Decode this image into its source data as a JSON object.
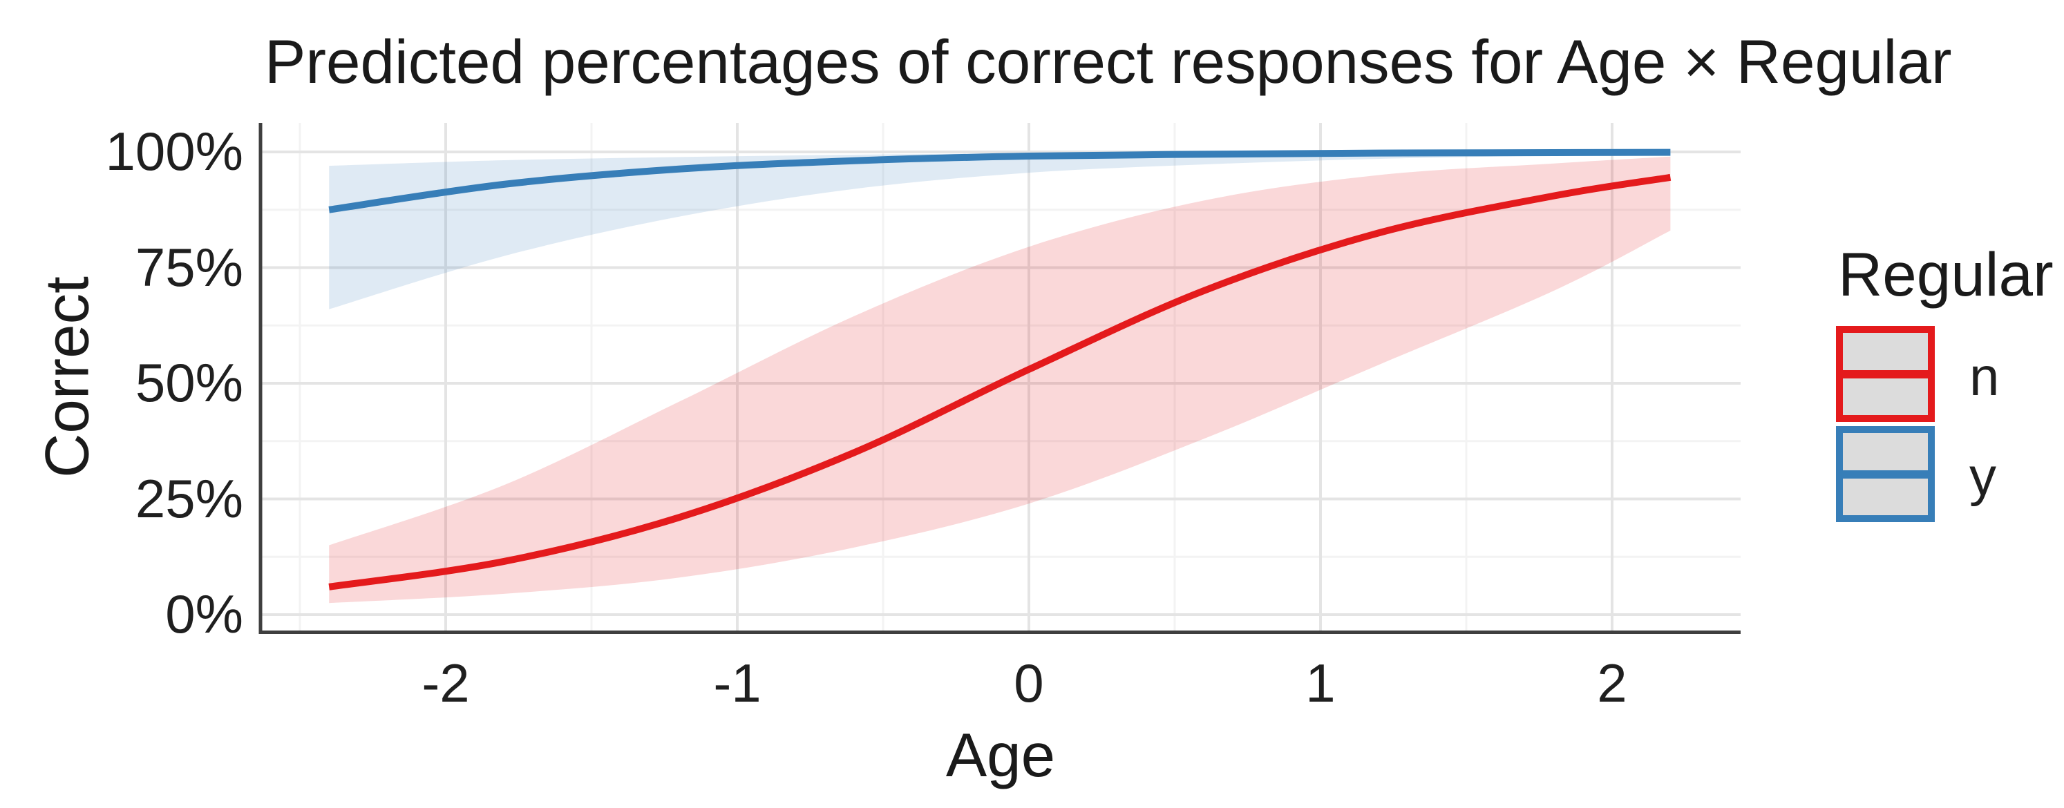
{
  "chart": {
    "title": "Predicted percentages of correct responses for Age × Regular",
    "x_axis": {
      "title": "Age",
      "ticks": [
        {
          "value": -2,
          "label": "-2"
        },
        {
          "value": -1,
          "label": "-1"
        },
        {
          "value": 0,
          "label": "0"
        },
        {
          "value": 1,
          "label": "1"
        },
        {
          "value": 2,
          "label": "2"
        }
      ]
    },
    "y_axis": {
      "title": "Correct",
      "ticks": [
        {
          "value": 0,
          "label": "0%"
        },
        {
          "value": 25,
          "label": "25%"
        },
        {
          "value": 50,
          "label": "50%"
        },
        {
          "value": 75,
          "label": "75%"
        },
        {
          "value": 100,
          "label": "100%"
        }
      ]
    },
    "legend": {
      "title": "Regular",
      "entries": [
        {
          "label": "n",
          "color": "#E41A1C"
        },
        {
          "label": "y",
          "color": "#377EB8"
        }
      ],
      "key_fill": "#DCDCDC"
    },
    "colors": {
      "series_n": "#E41A1C",
      "series_y": "#377EB8",
      "grid_major": "#E4E4E4",
      "grid_minor": "#F3F3F3",
      "axis_line": "#3F3F3F",
      "ribbon_opacity_n": 0.17,
      "ribbon_opacity_y": 0.16
    }
  },
  "chart_data": {
    "type": "line",
    "title": "Predicted percentages of correct responses for Age × Regular",
    "xlabel": "Age",
    "ylabel": "Correct",
    "xlim": [
      -2.63,
      2.44
    ],
    "ylim_percent": [
      0,
      100
    ],
    "grid": "major and minor, light gray on white",
    "legend_position": "right",
    "legend_title": "Regular",
    "x": [
      -2.4,
      -1.8,
      -1.2,
      -0.6,
      0,
      0.6,
      1.2,
      1.8,
      2.2
    ],
    "series": [
      {
        "name": "n",
        "color": "#E41A1C",
        "values_percent": [
          6,
          11.5,
          21,
          35,
          53,
          70,
          82.5,
          90.5,
          94.5
        ],
        "ci_lower_percent": [
          2.5,
          4.5,
          8,
          14.5,
          24,
          38,
          54,
          70,
          83
        ],
        "ci_upper_percent": [
          15,
          28,
          46,
          64.5,
          79.5,
          89.5,
          95,
          97.5,
          99
        ]
      },
      {
        "name": "y",
        "color": "#377EB8",
        "values_percent": [
          87.5,
          93,
          96.3,
          98.1,
          99.1,
          99.5,
          99.75,
          99.85,
          99.9
        ],
        "ci_lower_percent": [
          66,
          77.5,
          86,
          92,
          95.5,
          97.3,
          98.5,
          99.2,
          99.4
        ],
        "ci_upper_percent": [
          97,
          98.2,
          98.9,
          99.4,
          99.7,
          99.85,
          99.92,
          99.96,
          99.98
        ]
      }
    ]
  }
}
